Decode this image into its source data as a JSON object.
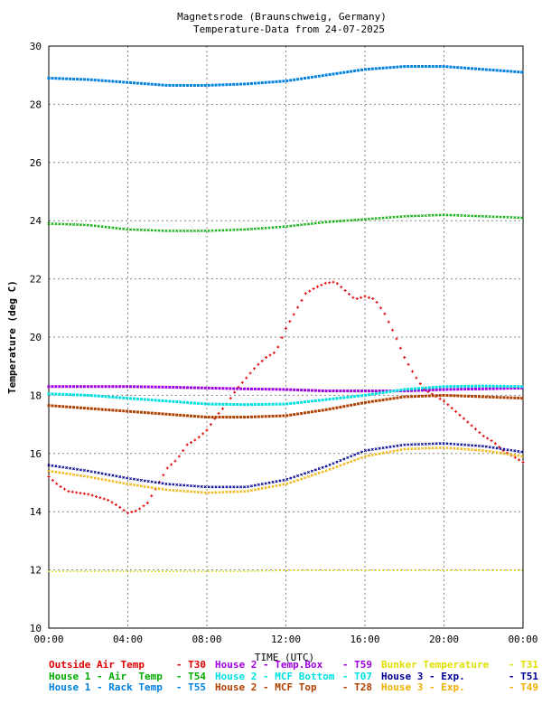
{
  "chart_data": {
    "type": "scatter",
    "title": "Magnetsrode (Braunschweig, Germany)",
    "subtitle": "Temperature-Data from 24-07-2025",
    "xlabel": "TIME (UTC)",
    "ylabel": "Temperature (deg C)",
    "xlim": [
      0,
      24
    ],
    "ylim": [
      10,
      30
    ],
    "x_ticks": [
      "00:00",
      "04:00",
      "08:00",
      "12:00",
      "16:00",
      "20:00",
      "00:00"
    ],
    "y_ticks": [
      "10",
      "12",
      "14",
      "16",
      "18",
      "20",
      "22",
      "24",
      "26",
      "28",
      "30"
    ],
    "grid": true,
    "legend_placement": "bottom",
    "x_unit": "hours (UTC)",
    "series": [
      {
        "name": "Outside Air Temp",
        "code": "T30",
        "color": "#e00000",
        "marker": "plus",
        "x": [
          0,
          0.5,
          1,
          1.5,
          2,
          2.5,
          3,
          3.5,
          4,
          4.5,
          5,
          5.5,
          6,
          6.5,
          7,
          7.5,
          8,
          8.5,
          9,
          9.5,
          10,
          10.5,
          11,
          11.5,
          12,
          12.5,
          13,
          13.5,
          14,
          14.5,
          15,
          15.5,
          16,
          16.5,
          17,
          17.5,
          18,
          18.5,
          19,
          19.5,
          20,
          20.5,
          21,
          21.5,
          22,
          22.5,
          23,
          23.5,
          24
        ],
        "y": [
          15.2,
          14.9,
          14.7,
          14.65,
          14.6,
          14.5,
          14.4,
          14.2,
          13.95,
          14.05,
          14.3,
          14.9,
          15.5,
          15.8,
          16.3,
          16.5,
          16.8,
          17.3,
          17.7,
          18.2,
          18.6,
          19.0,
          19.3,
          19.5,
          20.3,
          20.9,
          21.5,
          21.7,
          21.85,
          21.9,
          21.6,
          21.3,
          21.4,
          21.3,
          20.8,
          20.1,
          19.3,
          18.7,
          18.2,
          18.0,
          17.8,
          17.5,
          17.2,
          16.9,
          16.6,
          16.4,
          16.1,
          15.9,
          15.7
        ]
      },
      {
        "name": "House 1 - Air  Temp",
        "code": "T54",
        "color": "#00aa00",
        "marker": "cross",
        "x": [
          0,
          2,
          4,
          6,
          8,
          10,
          12,
          14,
          16,
          18,
          20,
          22,
          24
        ],
        "y": [
          23.9,
          23.85,
          23.7,
          23.65,
          23.65,
          23.7,
          23.8,
          23.95,
          24.05,
          24.15,
          24.2,
          24.15,
          24.1
        ]
      },
      {
        "name": "House 1 - Rack Temp",
        "code": "T55",
        "color": "#0080e0",
        "marker": "square",
        "x": [
          0,
          2,
          4,
          6,
          8,
          10,
          12,
          14,
          16,
          18,
          20,
          22,
          24
        ],
        "y": [
          28.9,
          28.85,
          28.75,
          28.65,
          28.65,
          28.7,
          28.8,
          29.0,
          29.2,
          29.3,
          29.3,
          29.2,
          29.1
        ]
      },
      {
        "name": "House 2 - Temp.Box",
        "code": "T59",
        "color": "#a000e0",
        "marker": "square",
        "x": [
          0,
          2,
          4,
          6,
          8,
          10,
          12,
          14,
          16,
          18,
          20,
          22,
          24
        ],
        "y": [
          18.3,
          18.3,
          18.3,
          18.28,
          18.25,
          18.22,
          18.2,
          18.15,
          18.15,
          18.15,
          18.2,
          18.22,
          18.25
        ]
      },
      {
        "name": "House 2 - MCF Bottom",
        "code": "T07",
        "color": "#00e0e0",
        "marker": "square",
        "x": [
          0,
          2,
          4,
          6,
          8,
          10,
          12,
          14,
          16,
          18,
          20,
          22,
          24
        ],
        "y": [
          18.05,
          18.0,
          17.9,
          17.8,
          17.7,
          17.68,
          17.7,
          17.85,
          18.0,
          18.2,
          18.3,
          18.32,
          18.3
        ]
      },
      {
        "name": "House 2 - MCF Top",
        "code": "T28",
        "color": "#b04000",
        "marker": "square",
        "x": [
          0,
          2,
          4,
          6,
          8,
          10,
          12,
          14,
          16,
          18,
          20,
          22,
          24
        ],
        "y": [
          17.65,
          17.55,
          17.45,
          17.35,
          17.25,
          17.25,
          17.3,
          17.5,
          17.75,
          17.95,
          18.0,
          17.95,
          17.9
        ]
      },
      {
        "name": "Bunker Temperature",
        "code": "T31",
        "color": "#e0e000",
        "marker": "dot",
        "x": [
          0,
          2,
          4,
          6,
          8,
          10,
          12,
          14,
          16,
          18,
          20,
          22,
          24
        ],
        "y": [
          11.95,
          11.95,
          11.95,
          11.95,
          11.95,
          11.95,
          11.98,
          11.98,
          11.98,
          11.98,
          11.98,
          11.98,
          11.98
        ]
      },
      {
        "name": "House 3 - Exp.",
        "code": "T51",
        "color": "#000090",
        "marker": "cross",
        "x": [
          0,
          2,
          4,
          6,
          8,
          10,
          12,
          14,
          16,
          18,
          20,
          22,
          24
        ],
        "y": [
          15.6,
          15.4,
          15.15,
          14.95,
          14.85,
          14.85,
          15.1,
          15.55,
          16.1,
          16.3,
          16.35,
          16.25,
          16.05
        ]
      },
      {
        "name": "House 3 - Exp.",
        "code": "T49",
        "color": "#f0b000",
        "marker": "cross",
        "x": [
          0,
          2,
          4,
          6,
          8,
          10,
          12,
          14,
          16,
          18,
          20,
          22,
          24
        ],
        "y": [
          15.4,
          15.2,
          14.95,
          14.75,
          14.65,
          14.7,
          14.95,
          15.4,
          15.9,
          16.15,
          16.2,
          16.1,
          15.9
        ]
      }
    ]
  },
  "legend": [
    {
      "label": "Outside Air Temp",
      "code": "- T30",
      "color": "#e00000"
    },
    {
      "label": "House 2 - Temp.Box",
      "code": "- T59",
      "color": "#a000e0"
    },
    {
      "label": "Bunker Temperature",
      "code": "- T31",
      "color": "#e0e000"
    },
    {
      "label": "House 1 - Air  Temp",
      "code": "- T54",
      "color": "#00aa00"
    },
    {
      "label": "House 2 - MCF Bottom",
      "code": "- T07",
      "color": "#00e0e0"
    },
    {
      "label": "House 3 - Exp.",
      "code": "- T51",
      "color": "#000090"
    },
    {
      "label": "House 1 - Rack Temp",
      "code": "- T55",
      "color": "#0080e0"
    },
    {
      "label": "House 2 - MCF Top",
      "code": "- T28",
      "color": "#b04000"
    },
    {
      "label": "House 3 - Exp.",
      "code": "- T49",
      "color": "#f0b000"
    }
  ]
}
